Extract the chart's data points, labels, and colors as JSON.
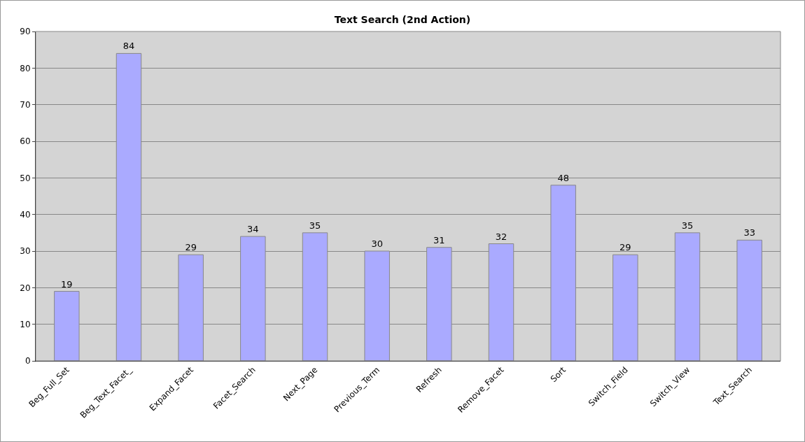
{
  "chart_data": {
    "type": "bar",
    "title": "Text Search (2nd Action)",
    "categories": [
      "Beg_Full_Set",
      "Beg_Text_Facet_",
      "Expand_Facet",
      "Facet_Search",
      "Next_Page",
      "Previous_Term",
      "Refresh",
      "Remove_Facet",
      "Sort",
      "Switch_Field",
      "Switch_View",
      "Text_Search"
    ],
    "values": [
      19,
      84,
      29,
      34,
      35,
      30,
      31,
      32,
      48,
      29,
      35,
      33
    ],
    "color": "#aaaaff",
    "ylim": [
      0,
      90
    ],
    "yticks": [
      0,
      10,
      20,
      30,
      40,
      50,
      60,
      70,
      80,
      90
    ],
    "grid": "y",
    "data_labels": true
  }
}
